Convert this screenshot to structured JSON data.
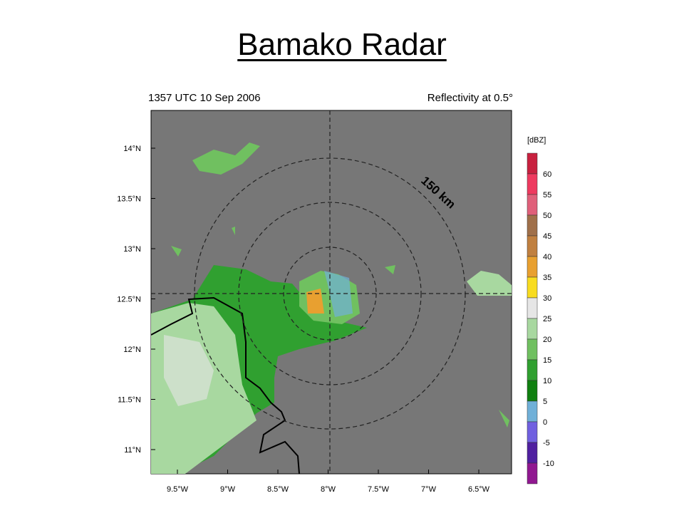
{
  "slide": {
    "title": "Bamako Radar"
  },
  "map": {
    "time_label": "1357 UTC 10 Sep 2006",
    "field_label": "Reflectivity at 0.5°",
    "annotation": "150 km",
    "x_labels": [
      "9.5°W",
      "9°W",
      "8.5°W",
      "8°W",
      "7.5°W",
      "7°W",
      "6.5°W"
    ],
    "y_labels": [
      "14°N",
      "13.5°N",
      "13°N",
      "12.5°N",
      "12°N",
      "11.5°N",
      "11°N"
    ],
    "colorbar": {
      "unit": "[dBZ]",
      "levels": [
        60,
        55,
        50,
        45,
        40,
        35,
        30,
        25,
        20,
        15,
        10,
        5,
        0,
        -5,
        -10
      ],
      "colors": [
        "#c8213f",
        "#ee3a5f",
        "#e0607a",
        "#a0704a",
        "#c08040",
        "#e8a030",
        "#f8dc20",
        "#e6e6e6",
        "#a8d8a0",
        "#70c060",
        "#30a030",
        "#108010",
        "#70b0d8",
        "#7060e0",
        "#5020a0",
        "#901890"
      ]
    }
  }
}
